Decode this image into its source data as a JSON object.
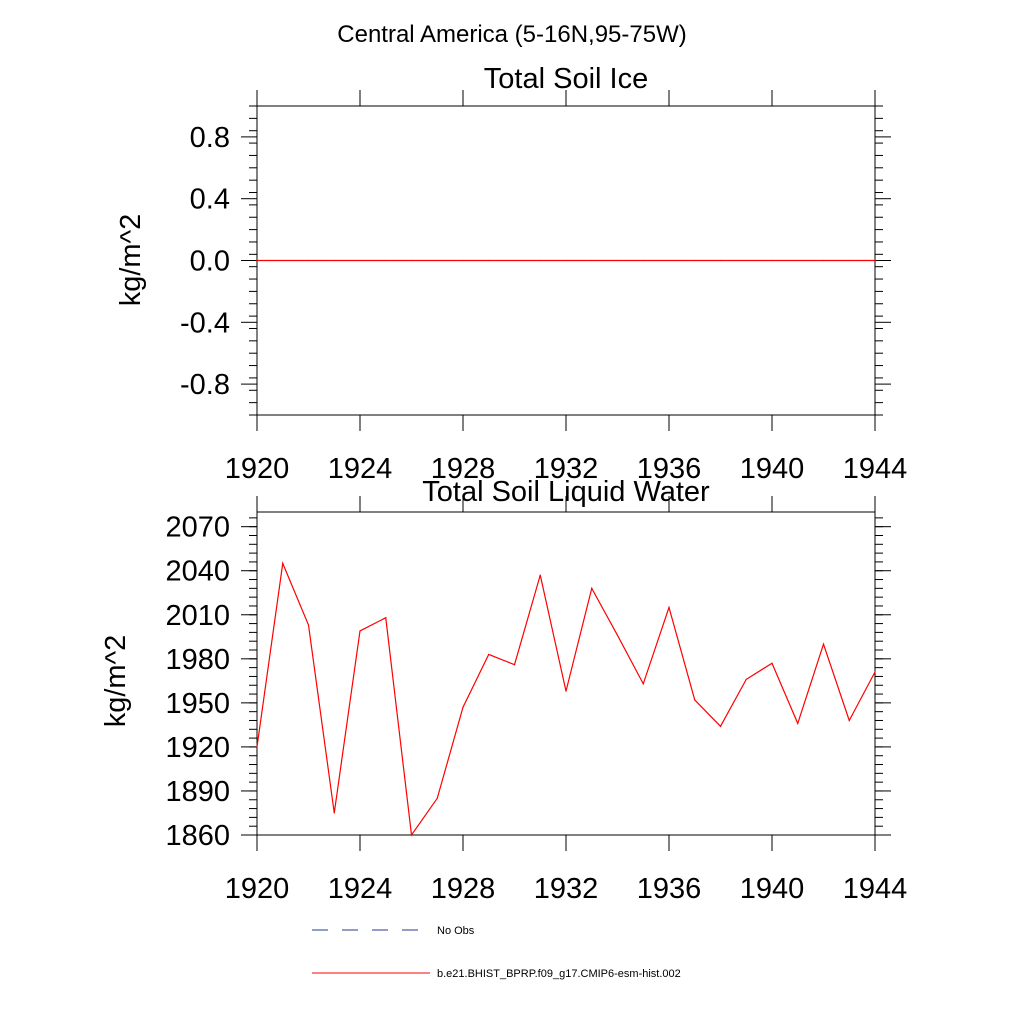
{
  "figure_title": "Central America (5-16N,95-75W)",
  "colors": {
    "model_line": "#ff0000",
    "obs_line": "#2a3b8f",
    "axes": "#000000"
  },
  "legend": [
    {
      "label": "No Obs",
      "style": "dashed",
      "color": "#2a3b8f"
    },
    {
      "label": "b.e21.BHIST_BPRP.f09_g17.CMIP6-esm-hist.002",
      "style": "solid",
      "color": "#ff0000"
    }
  ],
  "chart_data": [
    {
      "type": "line",
      "title": "Total Soil Ice",
      "ylabel": "kg/m^2",
      "xlabel": "",
      "xlim": [
        1920,
        1944
      ],
      "ylim": [
        -1.0,
        1.0
      ],
      "xticks": [
        1920,
        1924,
        1928,
        1932,
        1936,
        1940,
        1944
      ],
      "yticks": [
        0.8,
        0.4,
        0.0,
        -0.4,
        -0.8
      ],
      "ytick_labels": [
        "0.8",
        "0.4",
        "0.0",
        "-0.4",
        "-0.8"
      ],
      "grid": false,
      "series": [
        {
          "name": "b.e21.BHIST_BPRP.f09_g17.CMIP6-esm-hist.002",
          "x": [
            1920,
            1921,
            1922,
            1923,
            1924,
            1925,
            1926,
            1927,
            1928,
            1929,
            1930,
            1931,
            1932,
            1933,
            1934,
            1935,
            1936,
            1937,
            1938,
            1939,
            1940,
            1941,
            1942,
            1943,
            1944
          ],
          "y": [
            0,
            0,
            0,
            0,
            0,
            0,
            0,
            0,
            0,
            0,
            0,
            0,
            0,
            0,
            0,
            0,
            0,
            0,
            0,
            0,
            0,
            0,
            0,
            0,
            0
          ]
        }
      ]
    },
    {
      "type": "line",
      "title": "Total Soil Liquid Water",
      "ylabel": "kg/m^2",
      "xlabel": "",
      "xlim": [
        1920,
        1944
      ],
      "ylim": [
        1860,
        2080
      ],
      "xticks": [
        1920,
        1924,
        1928,
        1932,
        1936,
        1940,
        1944
      ],
      "yticks": [
        2070,
        2040,
        2010,
        1980,
        1950,
        1920,
        1890,
        1860
      ],
      "ytick_labels": [
        "2070",
        "2040",
        "2010",
        "1980",
        "1950",
        "1920",
        "1890",
        "1860"
      ],
      "grid": false,
      "series": [
        {
          "name": "b.e21.BHIST_BPRP.f09_g17.CMIP6-esm-hist.002",
          "x": [
            1920,
            1921,
            1922,
            1923,
            1924,
            1925,
            1926,
            1927,
            1928,
            1929,
            1930,
            1931,
            1932,
            1933,
            1934,
            1935,
            1936,
            1937,
            1938,
            1939,
            1940,
            1941,
            1942,
            1943,
            1944
          ],
          "y": [
            1920,
            2045,
            2003,
            1875,
            1999,
            2008,
            1860,
            1885,
            1947,
            1983,
            1976,
            2037,
            1958,
            2028,
            1996,
            1963,
            2015,
            1952,
            1934,
            1966,
            1977,
            1936,
            1990,
            1938,
            1971
          ]
        }
      ]
    }
  ]
}
